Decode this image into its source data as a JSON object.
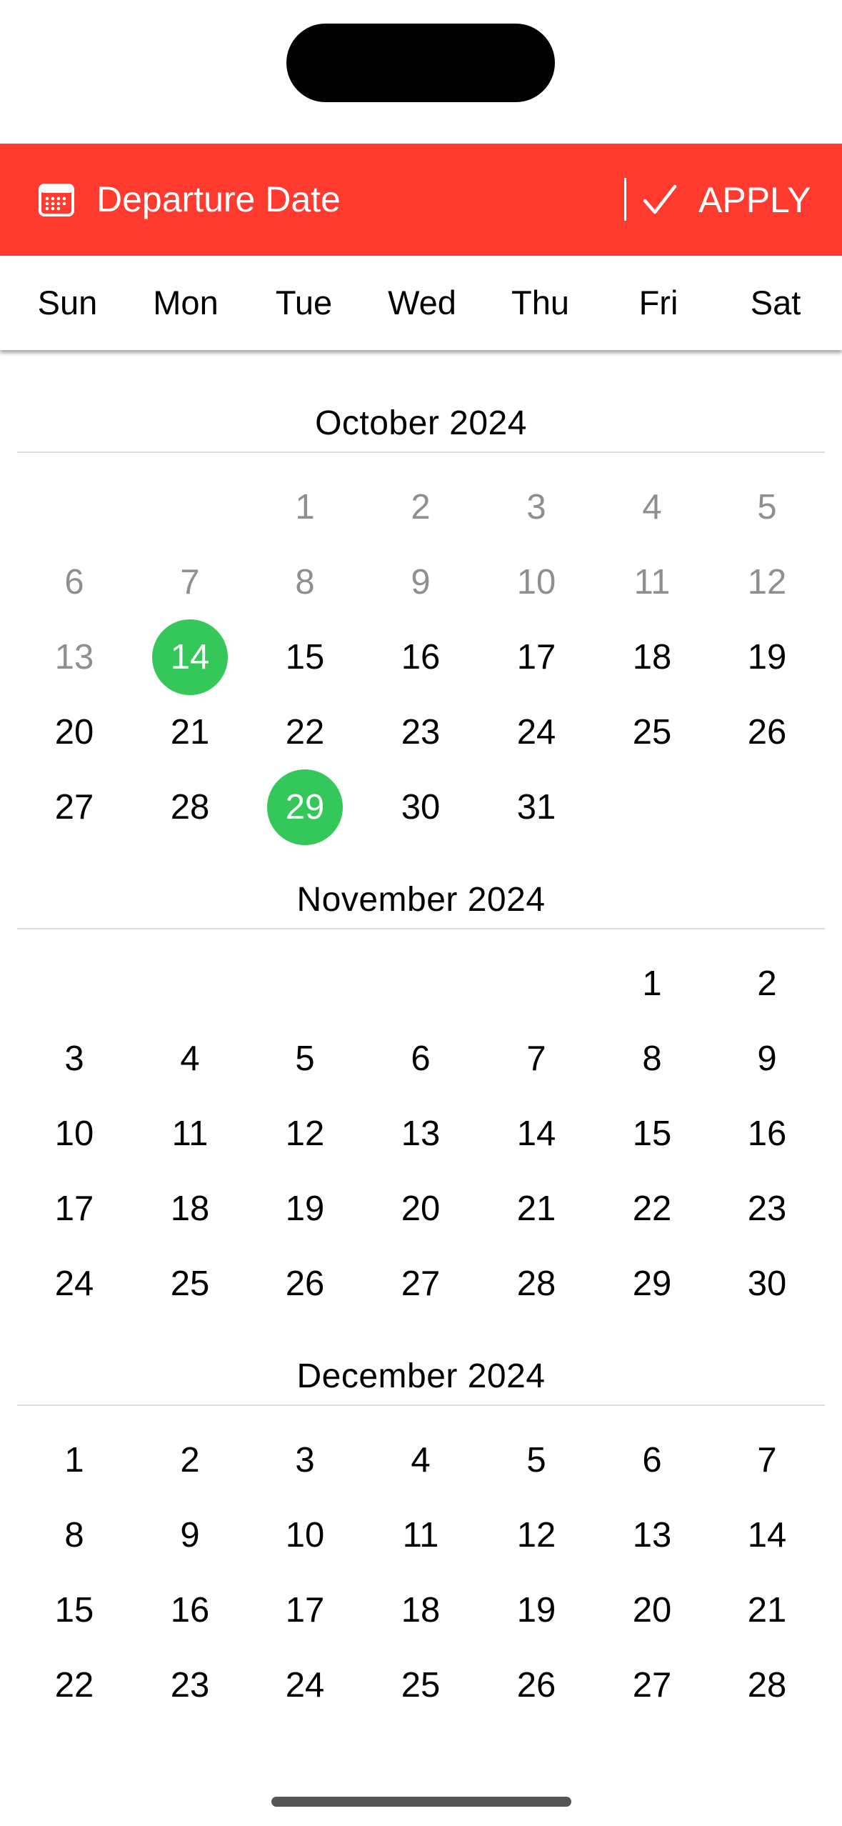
{
  "header": {
    "title": "Departure Date",
    "apply_label": "APPLY",
    "background_color": "#ff3b30",
    "icons": [
      "calendar-icon",
      "checkmark-icon"
    ]
  },
  "weekdays": [
    "Sun",
    "Mon",
    "Tue",
    "Wed",
    "Thu",
    "Fri",
    "Sat"
  ],
  "selection_color": "#34c759",
  "past_day_color": "#8e8e93",
  "months": [
    {
      "title": "October  2024",
      "first_weekday": 2,
      "num_days": 31,
      "past_before": 14,
      "selected": [
        14,
        29
      ]
    },
    {
      "title": "November  2024",
      "first_weekday": 5,
      "num_days": 30,
      "past_before": 0,
      "selected": []
    },
    {
      "title": "December  2024",
      "first_weekday": 0,
      "num_days": 28,
      "past_before": 0,
      "selected": []
    }
  ]
}
